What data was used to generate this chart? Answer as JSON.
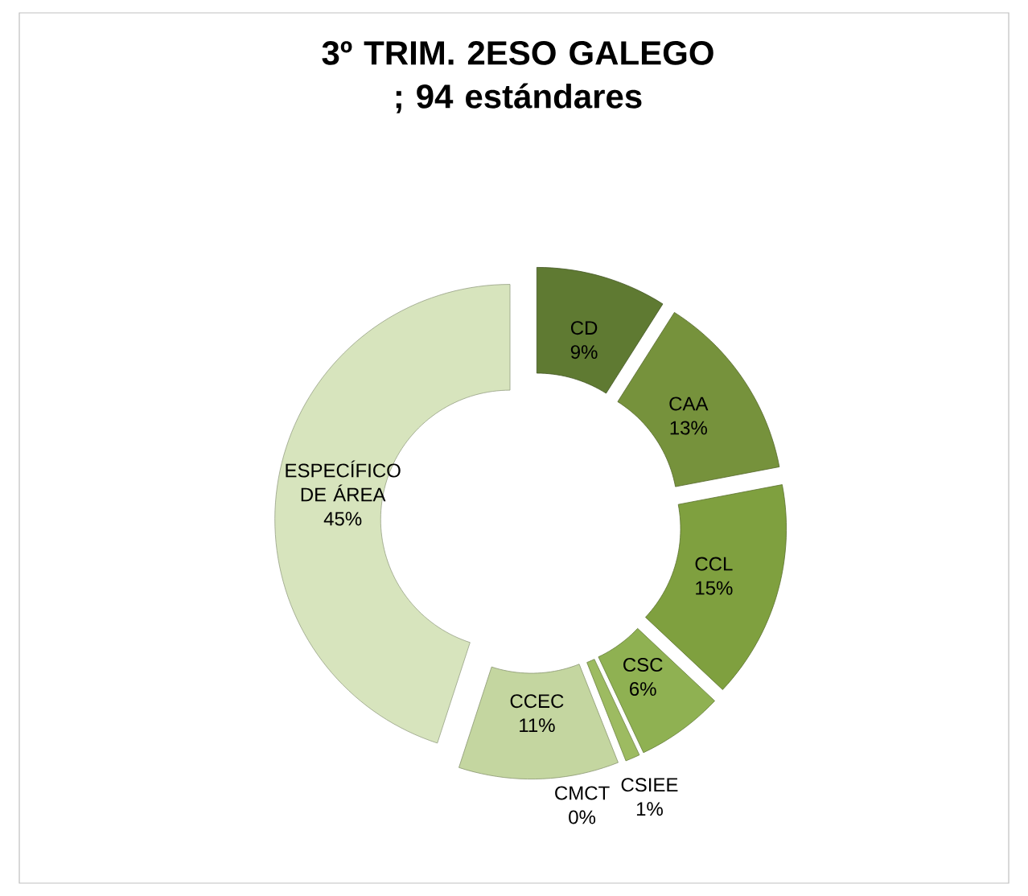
{
  "chart_data": {
    "type": "donut",
    "title": "3º TRIM. 2ESO GALEGO ; 94 estándares",
    "categories": [
      "CD",
      "CAA",
      "CCL",
      "CSC",
      "CSIEE",
      "CMCT",
      "CCEC",
      "ESPECÍFICO DE ÁREA"
    ],
    "values": [
      9,
      13,
      15,
      6,
      1,
      0,
      11,
      45
    ],
    "value_labels": [
      "9%",
      "13%",
      "15%",
      "6%",
      "1%",
      "0%",
      "11%",
      "45%"
    ],
    "colors": [
      "#5f7a32",
      "#76923c",
      "#7fa03f",
      "#8fb152",
      "#9dbb61",
      "#b7cc8f",
      "#c4d6a0",
      "#d7e4bd"
    ]
  }
}
